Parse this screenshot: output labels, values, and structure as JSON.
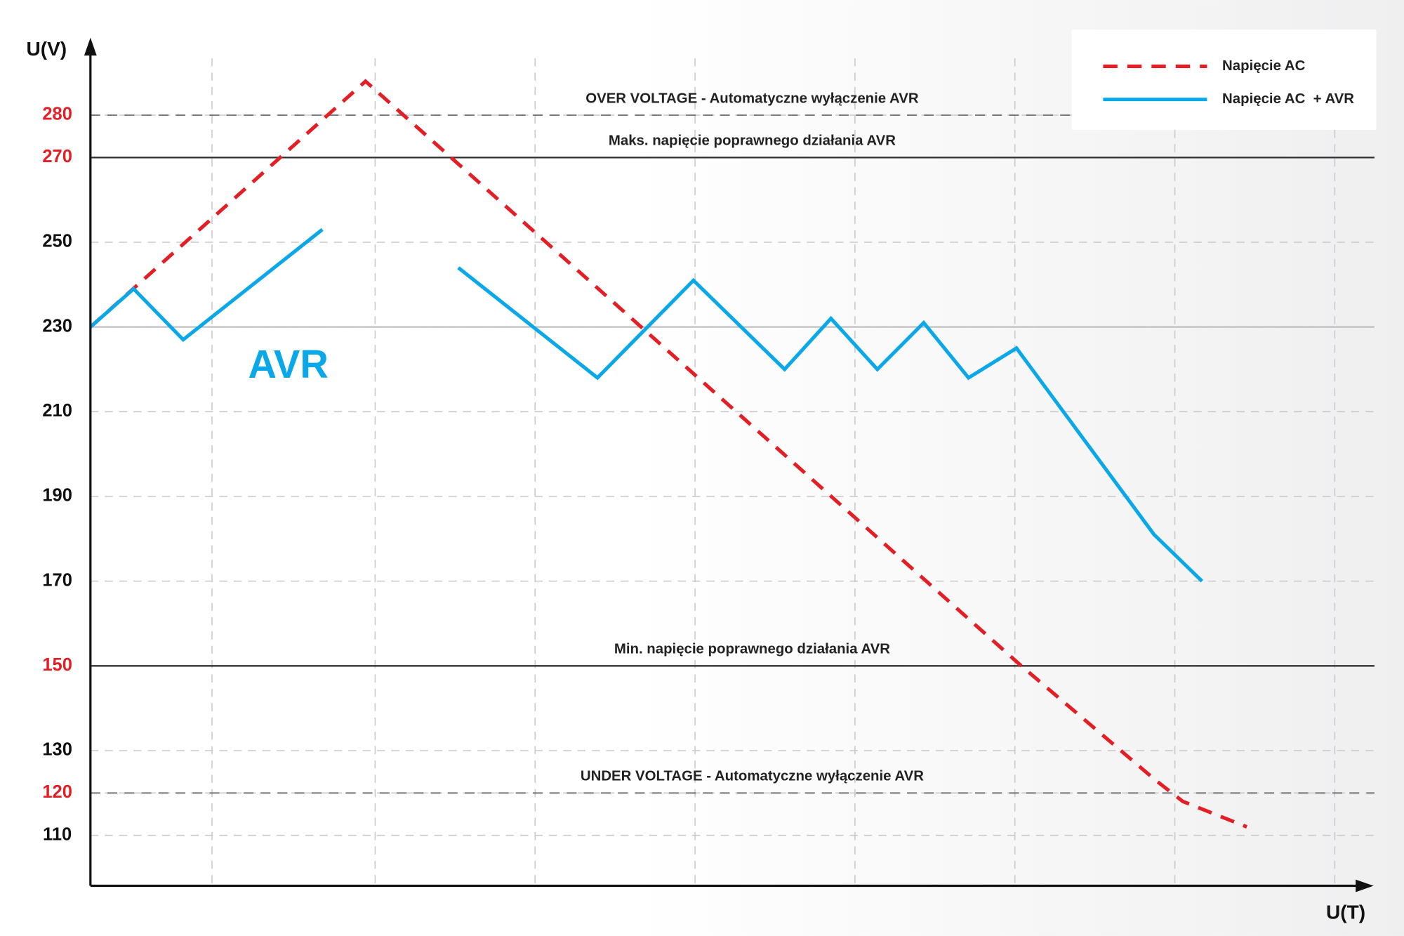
{
  "chart_data": {
    "type": "line",
    "x_label": "U(T)",
    "y_label": "U(V)",
    "big_label": "AVR",
    "big_label_color": "#0aa8e8",
    "xlim": [
      0,
      8
    ],
    "xgrid": [
      0.76,
      1.78,
      2.78,
      3.78,
      4.78,
      5.78,
      6.78,
      7.78
    ],
    "ylim": [
      98,
      298
    ],
    "yticks": [
      280,
      270,
      250,
      230,
      210,
      190,
      170,
      150,
      130,
      120,
      110
    ],
    "ytick_colors": [
      "#e31e24",
      "#e31e24",
      "#111111",
      "#111111",
      "#111111",
      "#111111",
      "#111111",
      "#e31e24",
      "#111111",
      "#e31e24",
      "#111111"
    ],
    "grid": true,
    "reference_lines": [
      {
        "value": 280,
        "style": "dashed",
        "label": "OVER VOLTAGE - Automatyczne wyłączenie AVR"
      },
      {
        "value": 270,
        "style": "solid",
        "label": "Maks. napięcie poprawnego działania AVR"
      },
      {
        "value": 230,
        "style": "light"
      },
      {
        "value": 150,
        "style": "solid",
        "label": "Min. napięcie poprawnego działania AVR"
      },
      {
        "value": 120,
        "style": "dashed",
        "label": "UNDER VOLTAGE - Automatyczne wyłączenie AVR"
      }
    ],
    "legend": "top-right",
    "series": [
      {
        "name": "Napięcie AC",
        "color": "#e31e24",
        "dashed": true,
        "x": [
          0,
          1.72,
          5.82,
          6.66,
          6.83,
          7.23
        ],
        "values": [
          230,
          288,
          150,
          123,
          118,
          112
        ]
      },
      {
        "name": "Napięcie AC  + AVR",
        "color": "#0aa8e8",
        "dashed": false,
        "x": [
          0,
          0.27,
          0.58,
          1.45,
          null,
          2.3,
          3.17,
          3.77,
          4.34,
          4.63,
          4.92,
          5.21,
          5.49,
          5.79,
          6.65,
          6.95
        ],
        "values": [
          230,
          239,
          227,
          253,
          null,
          244,
          218,
          241,
          220,
          232,
          220,
          231,
          218,
          225,
          181,
          170
        ]
      }
    ]
  }
}
